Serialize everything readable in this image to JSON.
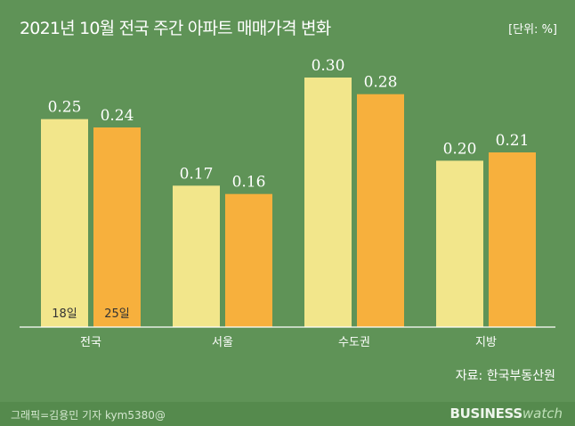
{
  "title": "2021년 10월 전국 주간 아파트 매매가격 변화",
  "unit": "[단위: %]",
  "source": "자료: 한국부동산원",
  "credit": "그래픽=김용민 기자 kym5380@",
  "brand": {
    "part1": "BUSINESS",
    "part2": "watch"
  },
  "colors": {
    "background": "#5f9357",
    "week18": "#f2e68b",
    "week25": "#f7b03d",
    "axis": "#ffffff"
  },
  "chart_data": {
    "type": "bar",
    "categories": [
      "전국",
      "서울",
      "수도권",
      "지방"
    ],
    "series": [
      {
        "name": "18일",
        "values": [
          0.25,
          0.17,
          0.3,
          0.2
        ]
      },
      {
        "name": "25일",
        "values": [
          0.24,
          0.16,
          0.28,
          0.21
        ]
      }
    ],
    "ylim": [
      0,
      0.3
    ],
    "grid": false,
    "legend": "inside first category bars"
  }
}
